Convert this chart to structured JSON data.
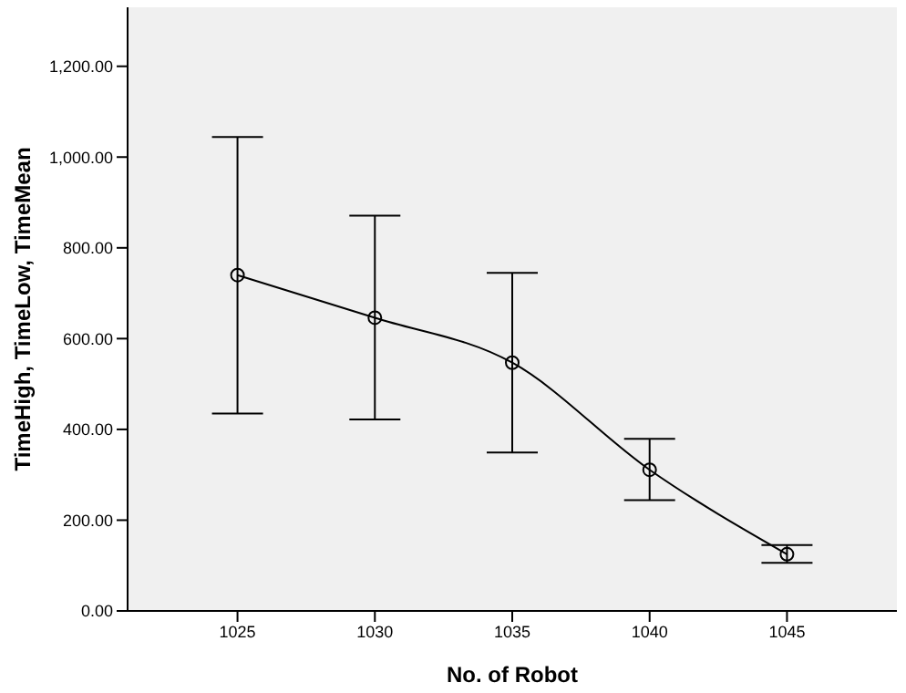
{
  "chart_data": {
    "type": "line",
    "xlabel": "No. of Robot",
    "ylabel": "TimeHigh, TimeLow, TimeMean",
    "x": [
      1025,
      1030,
      1035,
      1040,
      1045
    ],
    "series": [
      {
        "color": "#000000",
        "values": [
          740,
          646,
          547,
          311,
          125
        ],
        "errors": [
          [
            435,
            1044
          ],
          [
            422,
            871
          ],
          [
            349,
            745
          ],
          [
            244,
            379
          ],
          [
            106,
            145
          ]
        ]
      }
    ],
    "xlim": [
      1021,
      1049
    ],
    "xticks": [
      1025,
      1030,
      1035,
      1040,
      1045
    ],
    "ylim": [
      0,
      1330
    ],
    "yticks": [
      {
        "value": 0,
        "label": "0.00"
      },
      {
        "value": 200,
        "label": "200.00"
      },
      {
        "value": 400,
        "label": "400.00"
      },
      {
        "value": 600,
        "label": "600.00"
      },
      {
        "value": 800,
        "label": "800.00"
      },
      {
        "value": 1000,
        "label": "1,000.00"
      },
      {
        "value": 1200,
        "label": "1,200.00"
      }
    ],
    "grid": false,
    "legend": false,
    "marker": "circle",
    "line_style": "solid"
  }
}
